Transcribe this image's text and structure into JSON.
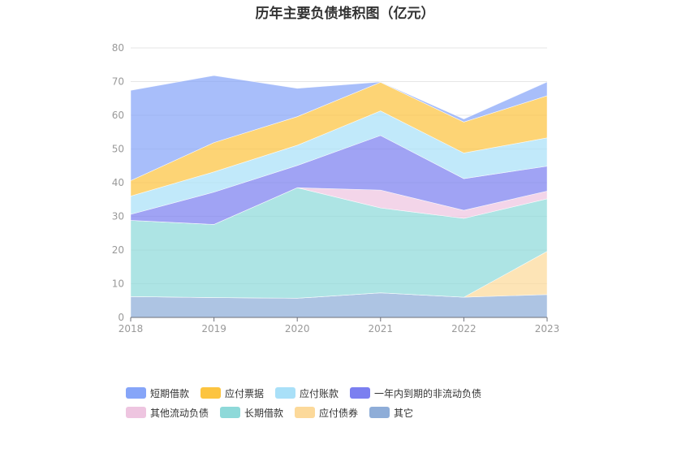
{
  "title": "历年主要负债堆积图（亿元）",
  "chart_data": {
    "type": "area",
    "stacked": true,
    "x": [
      "2018",
      "2019",
      "2020",
      "2021",
      "2022",
      "2023"
    ],
    "ylim": [
      0,
      80
    ],
    "yticks": [
      0,
      10,
      20,
      30,
      40,
      50,
      60,
      70,
      80
    ],
    "grid": true,
    "legend_position": "bottom",
    "series": [
      {
        "name": "其它",
        "color": "#8eadd8",
        "values": [
          6.2,
          5.9,
          5.7,
          7.3,
          6.0,
          6.8
        ]
      },
      {
        "name": "应付债券",
        "color": "#fcd99a",
        "values": [
          0,
          0,
          0,
          0,
          0,
          12.8
        ]
      },
      {
        "name": "长期借款",
        "color": "#8ed9d9",
        "values": [
          22.6,
          21.7,
          32.8,
          25.2,
          23.4,
          15.6
        ]
      },
      {
        "name": "其他流动负债",
        "color": "#eec5e0",
        "values": [
          0,
          0,
          0,
          5.3,
          2.4,
          2.3
        ]
      },
      {
        "name": "一年内到期的非流动负债",
        "color": "#7b7ff0",
        "values": [
          1.8,
          9.6,
          6.6,
          16.2,
          9.4,
          7.4
        ]
      },
      {
        "name": "应付账款",
        "color": "#a9e0f8",
        "values": [
          5.4,
          6.0,
          6.0,
          7.3,
          7.6,
          8.4
        ]
      },
      {
        "name": "应付票据",
        "color": "#fcc440",
        "values": [
          4.6,
          8.7,
          8.5,
          8.5,
          9.2,
          12.5
        ]
      },
      {
        "name": "短期借款",
        "color": "#86a5f8",
        "values": [
          26.8,
          19.9,
          8.4,
          0.1,
          0.9,
          4.1
        ]
      }
    ]
  },
  "legend": [
    {
      "label": "短期借款",
      "color": "#86a5f8"
    },
    {
      "label": "应付票据",
      "color": "#fcc440"
    },
    {
      "label": "应付账款",
      "color": "#a9e0f8"
    },
    {
      "label": "一年内到期的非流动负债",
      "color": "#7b7ff0"
    },
    {
      "label": "其他流动负债",
      "color": "#eec5e0"
    },
    {
      "label": "长期借款",
      "color": "#8ed9d9"
    },
    {
      "label": "应付债券",
      "color": "#fcd99a"
    },
    {
      "label": "其它",
      "color": "#8eadd8"
    }
  ]
}
